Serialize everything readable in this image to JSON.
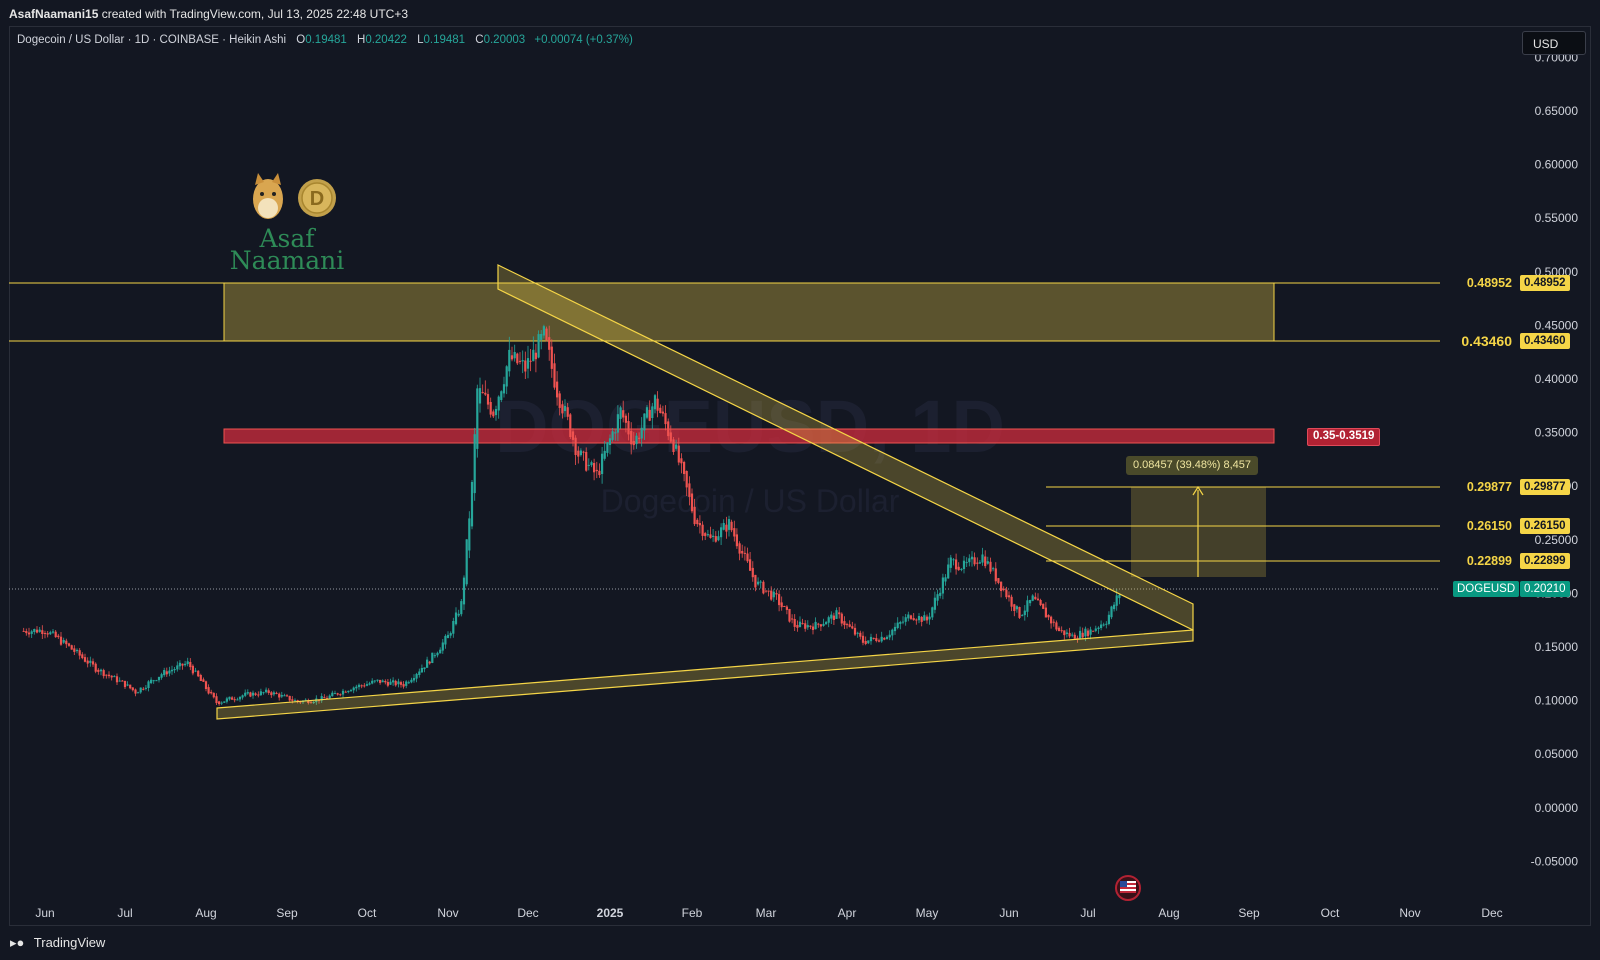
{
  "header": {
    "author": "AsafNaamani15",
    "created_text": "created with TradingView.com, Jul 13, 2025 22:48 UTC+3"
  },
  "legend": {
    "symbol": "Dogecoin / US Dollar · 1D · COINBASE · Heikin Ashi",
    "open_label": "O",
    "open_value": "0.19481",
    "high_label": "H",
    "high_value": "0.20422",
    "low_label": "L",
    "low_value": "0.19481",
    "close_label": "C",
    "close_value": "0.20003",
    "change": "+0.00074 (+0.37%)"
  },
  "currency_button": "USD",
  "watermark": {
    "ticker": "DOGEUSD, 1D",
    "name": "Dogecoin / US Dollar",
    "author_name": "Asaf Naamani"
  },
  "price_axis": {
    "ticks": [
      "0.70000",
      "0.65000",
      "0.60000",
      "0.55000",
      "0.50000",
      "0.45000",
      "0.40000",
      "0.35000",
      "0.30000",
      "0.25000",
      "0.20000",
      "0.15000",
      "0.10000",
      "0.05000",
      "0.00000",
      "-0.05000"
    ]
  },
  "levels": {
    "top_zone_high": "0.48952",
    "top_zone_low": "0.43460",
    "target_3": "0.29877",
    "target_2": "0.26150",
    "target_1": "0.22899",
    "current_symbol": "DOGEUSD",
    "current_price": "0.20210",
    "resistance_zone": "0.35-0.3519",
    "measure": "0.08457 (39.48%) 8,457"
  },
  "time_axis": {
    "ticks": [
      "Jun",
      "Jul",
      "Aug",
      "Sep",
      "Oct",
      "Nov",
      "Dec",
      "2025",
      "Feb",
      "Mar",
      "Apr",
      "May",
      "Jun",
      "Jul",
      "Aug",
      "Sep",
      "Oct",
      "Nov",
      "Dec"
    ]
  },
  "footer": {
    "brand": "TradingView"
  },
  "colors": {
    "background": "#131722",
    "up": "#26a69a",
    "down": "#ef5350",
    "pattern": "#f5d547",
    "resistance": "#b22233"
  },
  "chart_data": {
    "type": "candlestick",
    "symbol": "DOGEUSD",
    "timeframe": "1D",
    "ylim": [
      -0.07,
      0.72
    ],
    "x_ticks": [
      "Jun",
      "Jul",
      "Aug",
      "Sep",
      "Oct",
      "Nov",
      "Dec",
      "2025",
      "Feb",
      "Mar",
      "Apr",
      "May",
      "Jun",
      "Jul",
      "Aug",
      "Sep",
      "Oct",
      "Nov",
      "Dec"
    ],
    "close_series": [
      [
        "2024-05-24",
        0.165
      ],
      [
        "2024-06-01",
        0.166
      ],
      [
        "2024-06-10",
        0.15
      ],
      [
        "2024-06-20",
        0.13
      ],
      [
        "2024-07-01",
        0.115
      ],
      [
        "2024-07-05",
        0.108
      ],
      [
        "2024-07-15",
        0.125
      ],
      [
        "2024-07-25",
        0.135
      ],
      [
        "2024-08-05",
        0.098
      ],
      [
        "2024-08-15",
        0.105
      ],
      [
        "2024-08-25",
        0.108
      ],
      [
        "2024-09-05",
        0.099
      ],
      [
        "2024-09-15",
        0.102
      ],
      [
        "2024-09-25",
        0.112
      ],
      [
        "2024-10-05",
        0.118
      ],
      [
        "2024-10-15",
        0.115
      ],
      [
        "2024-10-25",
        0.138
      ],
      [
        "2024-11-01",
        0.16
      ],
      [
        "2024-11-06",
        0.19
      ],
      [
        "2024-11-10",
        0.3
      ],
      [
        "2024-11-12",
        0.39
      ],
      [
        "2024-11-18",
        0.37
      ],
      [
        "2024-11-24",
        0.42
      ],
      [
        "2024-11-30",
        0.41
      ],
      [
        "2024-12-07",
        0.44
      ],
      [
        "2024-12-12",
        0.39
      ],
      [
        "2024-12-20",
        0.33
      ],
      [
        "2024-12-27",
        0.31
      ],
      [
        "2025-01-05",
        0.37
      ],
      [
        "2025-01-10",
        0.34
      ],
      [
        "2025-01-18",
        0.38
      ],
      [
        "2025-01-25",
        0.34
      ],
      [
        "2025-02-02",
        0.27
      ],
      [
        "2025-02-08",
        0.25
      ],
      [
        "2025-02-15",
        0.265
      ],
      [
        "2025-02-25",
        0.21
      ],
      [
        "2025-03-05",
        0.195
      ],
      [
        "2025-03-12",
        0.17
      ],
      [
        "2025-03-20",
        0.17
      ],
      [
        "2025-03-28",
        0.18
      ],
      [
        "2025-04-07",
        0.155
      ],
      [
        "2025-04-15",
        0.16
      ],
      [
        "2025-04-25",
        0.18
      ],
      [
        "2025-05-01",
        0.175
      ],
      [
        "2025-05-10",
        0.23
      ],
      [
        "2025-05-15",
        0.225
      ],
      [
        "2025-05-22",
        0.235
      ],
      [
        "2025-06-01",
        0.195
      ],
      [
        "2025-06-05",
        0.18
      ],
      [
        "2025-06-10",
        0.195
      ],
      [
        "2025-06-20",
        0.165
      ],
      [
        "2025-06-25",
        0.16
      ],
      [
        "2025-07-02",
        0.165
      ],
      [
        "2025-07-08",
        0.175
      ],
      [
        "2025-07-13",
        0.2
      ]
    ],
    "annotations": {
      "supply_zone": [
        0.4346,
        0.48952
      ],
      "resistance_zone": [
        0.35,
        0.3519
      ],
      "targets": [
        0.22899,
        0.2615,
        0.29877
      ],
      "current_price": 0.2021,
      "pattern": "symmetrical triangle",
      "measured_move": "0.08457 (39.48%) 8,457"
    }
  }
}
